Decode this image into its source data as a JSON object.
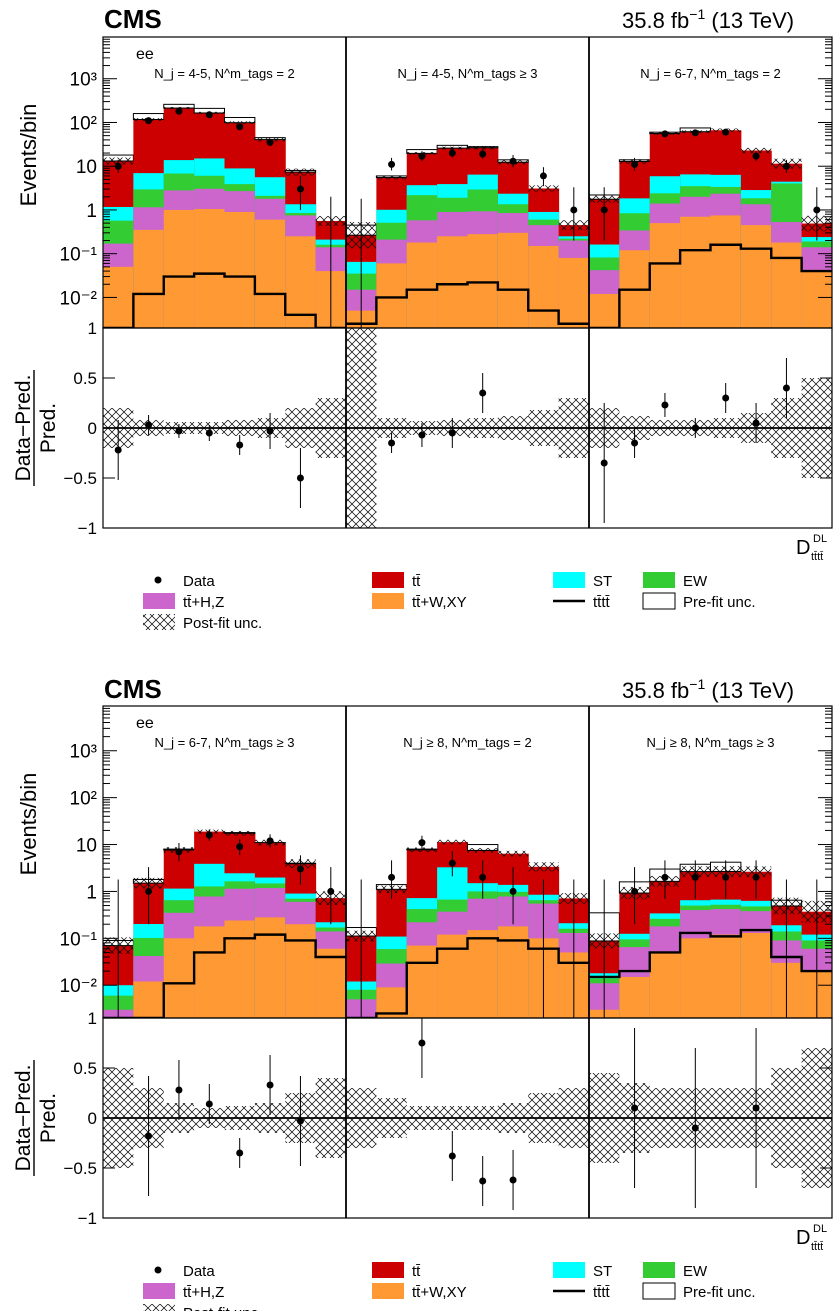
{
  "colors": {
    "ttbar": "#cc0000",
    "st": "#00ffff",
    "ew": "#33cc33",
    "ttHZ": "#cc66cc",
    "ttWXY": "#ff9933",
    "tttt": "#000000",
    "hatch": "#000000"
  },
  "legend": [
    {
      "key": "data",
      "label": "Data"
    },
    {
      "key": "ttbar",
      "label": "tt̄"
    },
    {
      "key": "st",
      "label": "ST"
    },
    {
      "key": "ew",
      "label": "EW"
    },
    {
      "key": "ttHZ",
      "label": "tt̄+H,Z"
    },
    {
      "key": "ttWXY",
      "label": "tt̄+W,XY"
    },
    {
      "key": "tttt",
      "label": "tt̄tt̄"
    },
    {
      "key": "prefit",
      "label": "Pre-fit unc."
    },
    {
      "key": "postfit",
      "label": "Post-fit unc."
    }
  ],
  "chart_data": [
    {
      "type": "bar",
      "experiment": "CMS",
      "lumi": "35.8 fb",
      "lumi_exp": "−1",
      "energy": "(13 TeV)",
      "channel": "ee",
      "ylabel": "Events/bin",
      "ratio_ylabel": "Data−Pred.",
      "ratio_ylabel2": "Pred.",
      "xlabel": "D",
      "xlabel_sup": "DL",
      "xlabel_sub": "tt̄tt̄",
      "log_y": true,
      "ylim": [
        0.002,
        9000
      ],
      "ratio_ylim": [
        -1,
        1
      ],
      "yticks": [
        "10⁻²",
        "10⁻¹",
        "1",
        "10",
        "10²",
        "10³"
      ],
      "ratio_yticks": [
        "1",
        "0.5",
        "0",
        "−0.5",
        "−1"
      ],
      "regions": [
        {
          "label": "N_j = 4-5, N^m_tags = 2",
          "ttbar": [
            12,
            110,
            200,
            150,
            90,
            35,
            6,
            0.35
          ],
          "st": [
            0.6,
            4,
            7,
            9,
            5,
            3.5,
            0.5,
            0.05
          ],
          "ew": [
            0.4,
            1.8,
            4,
            3,
            1.2,
            0.3,
            0.1,
            0.02
          ],
          "ttHZ": [
            0.12,
            0.8,
            1.8,
            2.0,
            1.8,
            1.2,
            0.5,
            0.1
          ],
          "ttWXY": [
            0.05,
            0.35,
            1.0,
            1.05,
            0.9,
            0.6,
            0.25,
            0.04
          ],
          "tttt": [
            0,
            0.012,
            0.03,
            0.035,
            0.03,
            0.012,
            0.004,
            0.002
          ],
          "prefit": [
            18,
            160,
            260,
            210,
            130,
            45,
            8,
            0.5
          ],
          "data": [
            10,
            110,
            180,
            150,
            80,
            35,
            3,
            0
          ],
          "data_err_lo": [
            3,
            10,
            13,
            12,
            9,
            6,
            2,
            0
          ],
          "data_err_hi": [
            4,
            11,
            14,
            13,
            10,
            7,
            3,
            2
          ],
          "ratio": [
            -0.22,
            0.03,
            -0.03,
            -0.05,
            -0.17,
            -0.03,
            -0.5,
            null
          ],
          "ratio_err": [
            0.3,
            0.1,
            0.07,
            0.08,
            0.1,
            0.18,
            0.3,
            0
          ],
          "postfit_band": [
            0.2,
            0.08,
            0.06,
            0.06,
            0.08,
            0.1,
            0.2,
            0.3
          ]
        },
        {
          "label": "N_j = 4-5, N^m_tags ≥ 3",
          "ttbar": [
            0.2,
            4.5,
            16,
            22,
            20,
            10,
            2.2,
            0.2
          ],
          "st": [
            0.03,
            0.5,
            1.5,
            2.0,
            3.5,
            1.0,
            0.3,
            0.03
          ],
          "ew": [
            0.02,
            0.3,
            1.6,
            1.0,
            2.0,
            0.5,
            0.15,
            0.02
          ],
          "ttHZ": [
            0.01,
            0.15,
            0.4,
            0.65,
            0.65,
            0.55,
            0.3,
            0.12
          ],
          "ttWXY": [
            0.005,
            0.06,
            0.18,
            0.25,
            0.28,
            0.3,
            0.15,
            0.08
          ],
          "tttt": [
            0.0025,
            0.01,
            0.015,
            0.02,
            0.022,
            0.015,
            0.005,
            0.0025
          ],
          "prefit": [
            0.45,
            6,
            24,
            30,
            28,
            14,
            3,
            0.25
          ],
          "data": [
            0,
            11,
            17,
            20,
            19,
            13,
            6,
            1
          ],
          "data_err_lo": [
            0,
            3,
            4,
            4,
            4,
            3.5,
            2.5,
            0.8
          ],
          "data_err_hi": [
            1.8,
            4.5,
            5,
            5.5,
            5.5,
            5,
            3.5,
            2.3
          ],
          "ratio": [
            null,
            -0.15,
            -0.07,
            -0.05,
            0.35,
            null,
            null,
            null
          ],
          "ratio_err": [
            0,
            0.1,
            0.12,
            0.15,
            0.2,
            0,
            0,
            0
          ],
          "postfit_band": [
            1.0,
            0.1,
            0.07,
            0.08,
            0.1,
            0.12,
            0.18,
            0.3
          ]
        },
        {
          "label": "N_j = 6-7, N^m_tags = 2",
          "ttbar": [
            1.6,
            11,
            50,
            55,
            60,
            20,
            7,
            0.25
          ],
          "st": [
            0.08,
            1.0,
            3.5,
            3.0,
            3.0,
            1.0,
            0.4,
            0.05
          ],
          "ew": [
            0.04,
            0.5,
            1.0,
            1.5,
            1.0,
            0.5,
            3.5,
            0.05
          ],
          "ttHZ": [
            0.03,
            0.22,
            0.9,
            1.3,
            1.6,
            0.9,
            0.35,
            0.1
          ],
          "ttWXY": [
            0.012,
            0.12,
            0.5,
            0.7,
            0.75,
            0.45,
            0.18,
            0.04
          ],
          "tttt": [
            0.002,
            0.015,
            0.06,
            0.12,
            0.16,
            0.13,
            0.08,
            0.04
          ],
          "prefit": [
            2.2,
            14,
            60,
            75,
            60,
            22,
            8.5,
            0.4
          ],
          "data": [
            1,
            11,
            55,
            58,
            60,
            17,
            10,
            1
          ],
          "data_err_lo": [
            0.8,
            3,
            7,
            7,
            7.5,
            4,
            3,
            0.8
          ],
          "data_err_hi": [
            2.3,
            4.5,
            8,
            8,
            8.5,
            5,
            4,
            2.3
          ],
          "ratio": [
            -0.35,
            -0.15,
            0.23,
            0,
            0.3,
            0.05,
            0.4,
            null
          ],
          "ratio_err": [
            0.6,
            0.15,
            0.12,
            0.1,
            0.15,
            0.2,
            0.3,
            0
          ],
          "postfit_band": [
            0.2,
            0.12,
            0.08,
            0.08,
            0.1,
            0.15,
            0.3,
            0.5
          ]
        }
      ]
    },
    {
      "type": "bar",
      "experiment": "CMS",
      "lumi": "35.8 fb",
      "lumi_exp": "−1",
      "energy": "(13 TeV)",
      "channel": "ee",
      "ylabel": "Events/bin",
      "ratio_ylabel": "Data−Pred.",
      "ratio_ylabel2": "Pred.",
      "xlabel": "D",
      "xlabel_sup": "DL",
      "xlabel_sub": "tt̄tt̄",
      "log_y": true,
      "ylim": [
        0.002,
        9000
      ],
      "ratio_ylim": [
        -1,
        1
      ],
      "yticks": [
        "10⁻²",
        "10⁻¹",
        "1",
        "10",
        "10²",
        "10³"
      ],
      "ratio_yticks": [
        "1",
        "0.5",
        "0",
        "−0.5",
        "−1"
      ],
      "regions": [
        {
          "label": "N_j = 6-7, N^m_tags ≥ 3",
          "ttbar": [
            0.06,
            1.3,
            6.5,
            15,
            15,
            9,
            3,
            0.5
          ],
          "st": [
            0.004,
            0.1,
            0.5,
            2.6,
            0.8,
            0.5,
            0.2,
            0.05
          ],
          "ew": [
            0.003,
            0.06,
            0.3,
            0.5,
            0.5,
            0.3,
            0.1,
            0.03
          ],
          "ttHZ": [
            0.002,
            0.03,
            0.25,
            0.6,
            0.9,
            0.9,
            0.4,
            0.08
          ],
          "ttWXY": [
            0.001,
            0.012,
            0.1,
            0.18,
            0.24,
            0.28,
            0.2,
            0.06
          ],
          "tttt": [
            0.002,
            0.002,
            0.011,
            0.05,
            0.1,
            0.12,
            0.09,
            0.04
          ],
          "prefit": [
            0.09,
            1.8,
            8,
            18,
            18,
            11,
            4,
            0.6
          ],
          "data": [
            0,
            1,
            7,
            16,
            9,
            12,
            3,
            1
          ],
          "data_err_lo": [
            0,
            0.8,
            2.6,
            4,
            3,
            3.4,
            1.6,
            0.8
          ],
          "data_err_hi": [
            1.8,
            2.3,
            3.8,
            5,
            4,
            4.5,
            2.9,
            2.3
          ],
          "ratio": [
            null,
            -0.18,
            0.28,
            0.14,
            -0.35,
            0.33,
            -0.03,
            null
          ],
          "ratio_err": [
            0,
            0.6,
            0.3,
            0.2,
            0.15,
            0.3,
            0.45,
            0
          ],
          "postfit_band": [
            0.5,
            0.3,
            0.15,
            0.1,
            0.12,
            0.15,
            0.25,
            0.4
          ]
        },
        {
          "label": "N_j ≥ 8, N^m_tags = 2",
          "ttbar": [
            0.1,
            1.0,
            7,
            8,
            6,
            5,
            2.5,
            0.5
          ],
          "st": [
            0.004,
            0.05,
            0.3,
            2.6,
            0.5,
            0.4,
            0.2,
            0.05
          ],
          "ew": [
            0.003,
            0.03,
            0.2,
            0.3,
            0.3,
            0.2,
            0.1,
            0.03
          ],
          "ttHZ": [
            0.003,
            0.02,
            0.15,
            0.25,
            0.55,
            0.6,
            0.45,
            0.08
          ],
          "ttWXY": [
            0.002,
            0.009,
            0.07,
            0.12,
            0.15,
            0.18,
            0.1,
            0.05
          ],
          "tttt": [
            0.002,
            0.0025,
            0.03,
            0.06,
            0.1,
            0.09,
            0.06,
            0.03
          ],
          "prefit": [
            0.17,
            1.4,
            8,
            10,
            10,
            6,
            3,
            0.6
          ],
          "data": [
            0,
            2,
            11,
            4,
            2,
            1,
            0,
            0
          ],
          "data_err_lo": [
            0,
            1.3,
            3.3,
            1.9,
            1.3,
            0.8,
            0,
            0
          ],
          "data_err_hi": [
            1.8,
            2.6,
            4.4,
            3.2,
            2.6,
            2.3,
            1.8,
            1.8
          ],
          "ratio": [
            null,
            null,
            0.75,
            -0.38,
            -0.63,
            -0.62,
            null,
            null
          ],
          "ratio_err": [
            0,
            0,
            0.35,
            0.25,
            0.25,
            0.3,
            0,
            0
          ],
          "postfit_band": [
            0.3,
            0.2,
            0.12,
            0.12,
            0.12,
            0.15,
            0.25,
            0.3
          ]
        },
        {
          "label": "N_j ≥ 8, N^m_tags ≥ 3",
          "ttbar": [
            0.07,
            0.8,
            1.3,
            2.0,
            2.0,
            2.0,
            0.3,
            0.25
          ],
          "st": [
            0.004,
            0.03,
            0.08,
            0.15,
            0.15,
            0.15,
            0.05,
            0.03
          ],
          "ew": [
            0.003,
            0.03,
            0.08,
            0.1,
            0.1,
            0.1,
            0.05,
            0.03
          ],
          "ttHZ": [
            0.008,
            0.05,
            0.13,
            0.3,
            0.3,
            0.25,
            0.06,
            0.04
          ],
          "ttWXY": [
            0.003,
            0.015,
            0.05,
            0.1,
            0.12,
            0.13,
            0.03,
            0.02
          ],
          "tttt": [
            0.015,
            0.02,
            0.05,
            0.13,
            0.11,
            0.15,
            0.04,
            0.02
          ],
          "prefit": [
            0.35,
            1.6,
            3,
            3.8,
            4.2,
            2.5,
            0.65,
            0.3
          ],
          "data": [
            0,
            1,
            2,
            2,
            2,
            2,
            0,
            0
          ],
          "data_err_lo": [
            0,
            0.8,
            1.3,
            1.3,
            1.3,
            1.3,
            0,
            0
          ],
          "data_err_hi": [
            1.8,
            2.3,
            2.6,
            2.6,
            2.6,
            2.6,
            1.8,
            1.8
          ],
          "ratio": [
            null,
            0.1,
            null,
            -0.1,
            null,
            0.1,
            null,
            null
          ],
          "ratio_err": [
            0,
            0.8,
            0,
            0.8,
            0,
            0.8,
            0,
            0
          ],
          "postfit_band": [
            0.45,
            0.35,
            0.3,
            0.3,
            0.3,
            0.3,
            0.5,
            0.7
          ]
        }
      ]
    }
  ]
}
